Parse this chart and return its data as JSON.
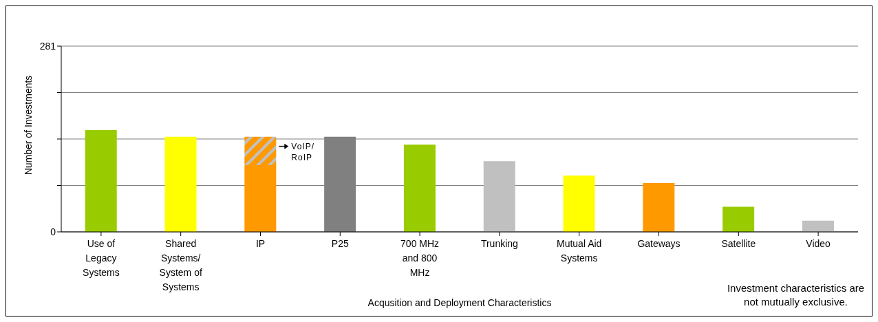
{
  "chart_data": {
    "type": "bar",
    "stacked": true,
    "xlabel": "Acqusition and Deployment Characteristics",
    "ylabel": "Number of Investments",
    "categories": [
      "Use of Legacy Systems",
      "Shared Systems/ System of Systems",
      "IP",
      "P25",
      "700 MHz and 800 MHz",
      "Trunking",
      "Mutual Aid Systems",
      "Gateways",
      "Satellite",
      "Video"
    ],
    "series": [
      {
        "colors": [
          "#99cc00",
          "#ffff00",
          "#ff9900",
          "#808080",
          "#99cc00",
          "#c0c0c0",
          "#ffff00",
          "#ff9900",
          "#99cc00",
          "#c0c0c0"
        ],
        "values": [
          154,
          144,
          101,
          144,
          132,
          107,
          85,
          74,
          38,
          17
        ]
      },
      {
        "name": "VoIP/RoIP",
        "color": "#ff9900",
        "values": [
          null,
          null,
          43,
          null,
          null,
          null,
          null,
          null,
          null,
          null
        ]
      }
    ],
    "ylim": [
      0,
      281
    ],
    "yticks": [
      0,
      {
        "value": 70.25,
        "label": null
      },
      {
        "value": 140.5,
        "label": null
      },
      {
        "value": 210.75,
        "label": null
      },
      281
    ],
    "grid": "y",
    "annotations": [
      "Investment characteristics are not mutually exclusive."
    ]
  }
}
